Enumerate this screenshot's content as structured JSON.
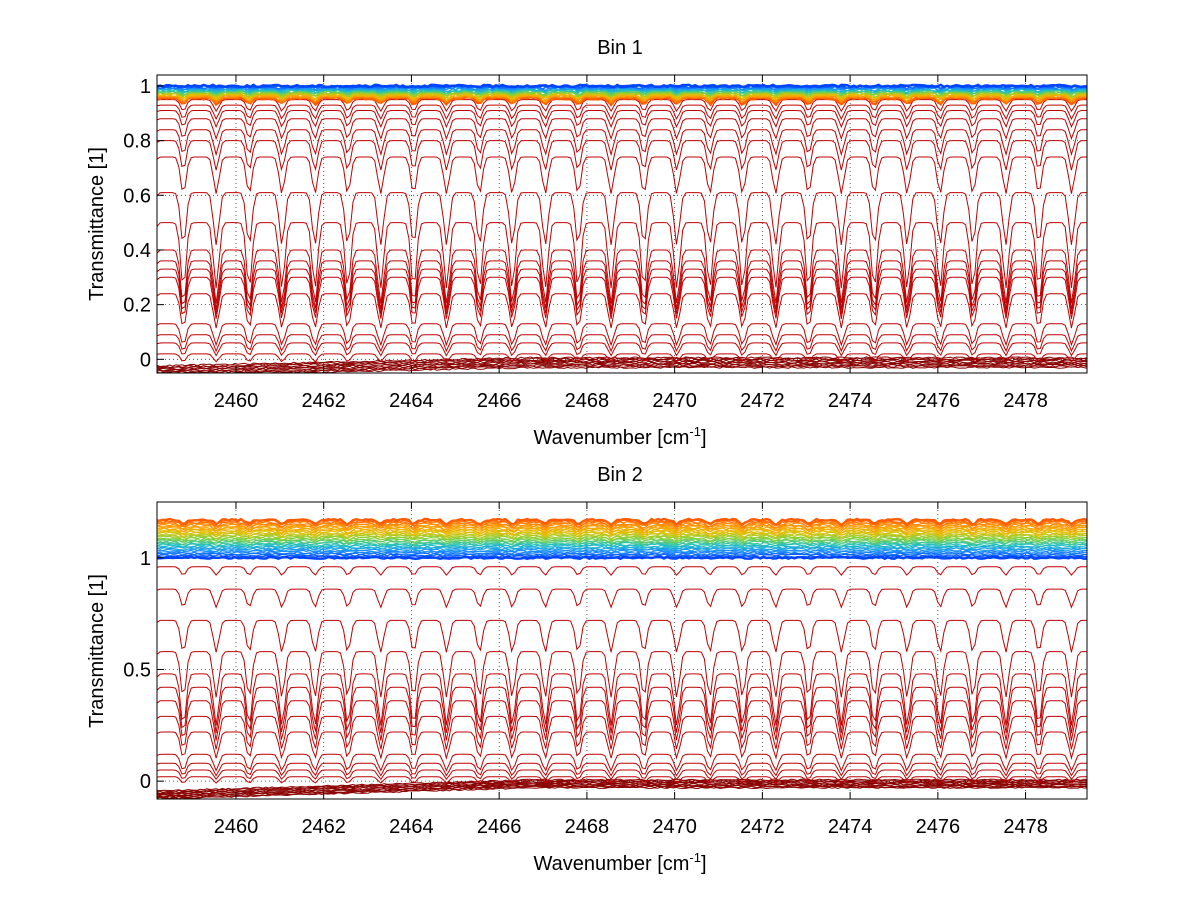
{
  "figure": {
    "background": "#ffffff"
  },
  "chart_data": [
    {
      "type": "line",
      "title": "Bin 1",
      "xlabel": "Wavenumber [cm",
      "xlabel_sup": "-1",
      "xlabel_close": "]",
      "ylabel": "Transmittance [1]",
      "xlim": [
        2458.2,
        2479.4
      ],
      "ylim": [
        -0.05,
        1.04
      ],
      "xticks": [
        2460,
        2462,
        2464,
        2466,
        2468,
        2470,
        2472,
        2474,
        2476,
        2478
      ],
      "xtick_labels": [
        "2460",
        "2462",
        "2464",
        "2466",
        "2468",
        "2470",
        "2472",
        "2474",
        "2476",
        "2478"
      ],
      "yticks": [
        0,
        0.2,
        0.4,
        0.6,
        0.8,
        1
      ],
      "ytick_labels": [
        "0",
        "0.2",
        "0.4",
        "0.6",
        "0.8",
        "1"
      ],
      "grid": true,
      "colormap": "jet",
      "line_spacing_cm-1": 0.75,
      "baselines_red": [
        0.02,
        0.06,
        0.09,
        0.13,
        0.24,
        0.3,
        0.33,
        0.36,
        0.4,
        0.5,
        0.61,
        0.74,
        0.8,
        0.84,
        0.88,
        0.91,
        0.93,
        0.95
      ],
      "band_upper": {
        "base_min": 0.955,
        "base_max": 1.0,
        "count": 28,
        "start_color": "#ff5a00",
        "end_color": "#0044ff"
      },
      "band_lower": {
        "count": 10,
        "y_at_start": -0.04,
        "y_at_end": -0.01
      }
    },
    {
      "type": "line",
      "title": "Bin 2",
      "xlabel": "Wavenumber [cm",
      "xlabel_sup": "-1",
      "xlabel_close": "]",
      "ylabel": "Transmittance [1]",
      "xlim": [
        2458.2,
        2479.4
      ],
      "ylim": [
        -0.08,
        1.25
      ],
      "xticks": [
        2460,
        2462,
        2464,
        2466,
        2468,
        2470,
        2472,
        2474,
        2476,
        2478
      ],
      "xtick_labels": [
        "2460",
        "2462",
        "2464",
        "2466",
        "2468",
        "2470",
        "2472",
        "2474",
        "2476",
        "2478"
      ],
      "yticks": [
        0,
        0.5,
        1
      ],
      "ytick_labels": [
        "0",
        "0.5",
        "1"
      ],
      "grid": true,
      "colormap": "jet",
      "line_spacing_cm-1": 0.75,
      "baselines_red": [
        0.02,
        0.05,
        0.08,
        0.12,
        0.22,
        0.29,
        0.36,
        0.42,
        0.48,
        0.58,
        0.72,
        0.86,
        0.96
      ],
      "band_upper": {
        "base_min": 1.0,
        "base_max": 1.17,
        "count": 30,
        "start_color": "#ff5a00",
        "end_color": "#0044ff"
      },
      "band_lower": {
        "count": 10,
        "y_at_start": -0.06,
        "y_at_end": -0.01
      }
    }
  ]
}
